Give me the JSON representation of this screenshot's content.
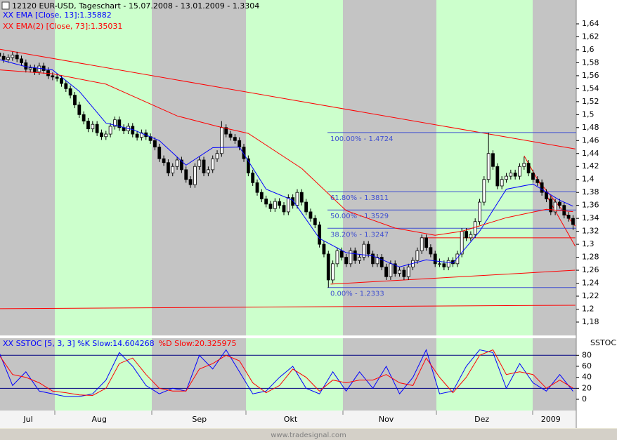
{
  "header": {
    "title": "12120  EUR-USD, Tageschart - 15.07.2008 - 13.01.2009 - 1.3304",
    "footer": "www.tradesignal.com"
  },
  "chart_data": [
    {
      "type": "candlestick",
      "xlim": [
        0.18,
        129.72
      ],
      "ylim": [
        1.1594,
        1.6768
      ],
      "yticks": [
        {
          "value": 1.18,
          "label": "1,18"
        },
        {
          "value": 1.2,
          "label": "1,2"
        },
        {
          "value": 1.22,
          "label": "1,22"
        },
        {
          "value": 1.24,
          "label": "1,24"
        },
        {
          "value": 1.26,
          "label": "1,26"
        },
        {
          "value": 1.28,
          "label": "1,28"
        },
        {
          "value": 1.3,
          "label": "1,3"
        },
        {
          "value": 1.32,
          "label": "1,32"
        },
        {
          "value": 1.34,
          "label": "1,34"
        },
        {
          "value": 1.36,
          "label": "1,36"
        },
        {
          "value": 1.38,
          "label": "1,38"
        },
        {
          "value": 1.4,
          "label": "1,4"
        },
        {
          "value": 1.42,
          "label": "1,42"
        },
        {
          "value": 1.44,
          "label": "1,44"
        },
        {
          "value": 1.46,
          "label": "1,46"
        },
        {
          "value": 1.48,
          "label": "1,48"
        },
        {
          "value": 1.5,
          "label": "1,5"
        },
        {
          "value": 1.52,
          "label": "1,52"
        },
        {
          "value": 1.54,
          "label": "1,54"
        },
        {
          "value": 1.56,
          "label": "1,56"
        },
        {
          "value": 1.58,
          "label": "1,58"
        },
        {
          "value": 1.6,
          "label": "1,6"
        },
        {
          "value": 1.62,
          "label": "1,62"
        },
        {
          "value": 1.64,
          "label": "1,64"
        }
      ],
      "up_color": "#ffffff",
      "down_color": "#000000",
      "ohlc": [
        [
          1.595,
          1.605,
          1.585,
          1.59
        ],
        [
          1.59,
          1.595,
          1.58,
          1.585
        ],
        [
          1.585,
          1.593,
          1.58,
          1.588
        ],
        [
          1.588,
          1.597,
          1.583,
          1.592
        ],
        [
          1.592,
          1.597,
          1.581,
          1.586
        ],
        [
          1.586,
          1.591,
          1.575,
          1.58
        ],
        [
          1.58,
          1.585,
          1.565,
          1.57
        ],
        [
          1.57,
          1.577,
          1.565,
          1.572
        ],
        [
          1.572,
          1.577,
          1.561,
          1.566
        ],
        [
          1.566,
          1.58,
          1.561,
          1.575
        ],
        [
          1.575,
          1.58,
          1.563,
          1.568
        ],
        [
          1.568,
          1.573,
          1.555,
          1.56
        ],
        [
          1.56,
          1.565,
          1.553,
          1.558
        ],
        [
          1.558,
          1.563,
          1.551,
          1.556
        ],
        [
          1.556,
          1.561,
          1.543,
          1.548
        ],
        [
          1.548,
          1.553,
          1.535,
          1.54
        ],
        [
          1.54,
          1.545,
          1.525,
          1.53
        ],
        [
          1.53,
          1.535,
          1.51,
          1.515
        ],
        [
          1.515,
          1.52,
          1.495,
          1.5
        ],
        [
          1.5,
          1.505,
          1.485,
          1.49
        ],
        [
          1.49,
          1.495,
          1.473,
          1.478
        ],
        [
          1.478,
          1.49,
          1.473,
          1.485
        ],
        [
          1.485,
          1.49,
          1.467,
          1.472
        ],
        [
          1.472,
          1.477,
          1.461,
          1.466
        ],
        [
          1.466,
          1.475,
          1.461,
          1.47
        ],
        [
          1.47,
          1.487,
          1.465,
          1.482
        ],
        [
          1.482,
          1.497,
          1.477,
          1.492
        ],
        [
          1.492,
          1.497,
          1.475,
          1.48
        ],
        [
          1.48,
          1.485,
          1.47,
          1.475
        ],
        [
          1.475,
          1.487,
          1.47,
          1.482
        ],
        [
          1.482,
          1.487,
          1.465,
          1.47
        ],
        [
          1.47,
          1.475,
          1.46,
          1.465
        ],
        [
          1.465,
          1.477,
          1.46,
          1.472
        ],
        [
          1.472,
          1.477,
          1.461,
          1.466
        ],
        [
          1.466,
          1.471,
          1.455,
          1.46
        ],
        [
          1.46,
          1.465,
          1.445,
          1.45
        ],
        [
          1.45,
          1.455,
          1.427,
          1.432
        ],
        [
          1.432,
          1.437,
          1.421,
          1.426
        ],
        [
          1.426,
          1.431,
          1.405,
          1.41
        ],
        [
          1.41,
          1.425,
          1.405,
          1.42
        ],
        [
          1.42,
          1.435,
          1.415,
          1.43
        ],
        [
          1.43,
          1.435,
          1.41,
          1.415
        ],
        [
          1.415,
          1.42,
          1.395,
          1.4
        ],
        [
          1.4,
          1.405,
          1.387,
          1.392
        ],
        [
          1.392,
          1.425,
          1.387,
          1.42
        ],
        [
          1.42,
          1.435,
          1.415,
          1.43
        ],
        [
          1.43,
          1.435,
          1.405,
          1.41
        ],
        [
          1.41,
          1.42,
          1.405,
          1.415
        ],
        [
          1.415,
          1.437,
          1.41,
          1.432
        ],
        [
          1.432,
          1.445,
          1.427,
          1.44
        ],
        [
          1.44,
          1.49,
          1.435,
          1.48
        ],
        [
          1.48,
          1.485,
          1.465,
          1.47
        ],
        [
          1.47,
          1.475,
          1.46,
          1.465
        ],
        [
          1.465,
          1.47,
          1.455,
          1.46
        ],
        [
          1.46,
          1.465,
          1.445,
          1.45
        ],
        [
          1.45,
          1.455,
          1.427,
          1.432
        ],
        [
          1.432,
          1.437,
          1.405,
          1.41
        ],
        [
          1.41,
          1.415,
          1.39,
          1.395
        ],
        [
          1.395,
          1.4,
          1.375,
          1.38
        ],
        [
          1.38,
          1.385,
          1.365,
          1.37
        ],
        [
          1.37,
          1.375,
          1.357,
          1.362
        ],
        [
          1.362,
          1.367,
          1.35,
          1.355
        ],
        [
          1.355,
          1.371,
          1.35,
          1.366
        ],
        [
          1.366,
          1.371,
          1.355,
          1.36
        ],
        [
          1.36,
          1.365,
          1.345,
          1.35
        ],
        [
          1.35,
          1.377,
          1.345,
          1.372
        ],
        [
          1.372,
          1.377,
          1.355,
          1.36
        ],
        [
          1.36,
          1.385,
          1.355,
          1.38
        ],
        [
          1.38,
          1.385,
          1.36,
          1.365
        ],
        [
          1.365,
          1.37,
          1.345,
          1.35
        ],
        [
          1.35,
          1.355,
          1.335,
          1.34
        ],
        [
          1.34,
          1.345,
          1.325,
          1.33
        ],
        [
          1.33,
          1.335,
          1.295,
          1.3
        ],
        [
          1.3,
          1.305,
          1.28,
          1.285
        ],
        [
          1.285,
          1.29,
          1.2333,
          1.245
        ],
        [
          1.245,
          1.275,
          1.24,
          1.27
        ],
        [
          1.27,
          1.295,
          1.265,
          1.29
        ],
        [
          1.29,
          1.295,
          1.275,
          1.28
        ],
        [
          1.28,
          1.285,
          1.265,
          1.27
        ],
        [
          1.27,
          1.295,
          1.265,
          1.29
        ],
        [
          1.29,
          1.295,
          1.27,
          1.275
        ],
        [
          1.275,
          1.285,
          1.27,
          1.28
        ],
        [
          1.28,
          1.305,
          1.275,
          1.3
        ],
        [
          1.3,
          1.305,
          1.28,
          1.285
        ],
        [
          1.285,
          1.29,
          1.265,
          1.27
        ],
        [
          1.27,
          1.285,
          1.265,
          1.28
        ],
        [
          1.28,
          1.285,
          1.26,
          1.265
        ],
        [
          1.265,
          1.27,
          1.245,
          1.25
        ],
        [
          1.25,
          1.275,
          1.245,
          1.27
        ],
        [
          1.27,
          1.275,
          1.25,
          1.255
        ],
        [
          1.255,
          1.265,
          1.25,
          1.26
        ],
        [
          1.26,
          1.265,
          1.245,
          1.25
        ],
        [
          1.25,
          1.27,
          1.245,
          1.265
        ],
        [
          1.265,
          1.28,
          1.26,
          1.275
        ],
        [
          1.275,
          1.295,
          1.27,
          1.29
        ],
        [
          1.29,
          1.315,
          1.285,
          1.31
        ],
        [
          1.31,
          1.315,
          1.29,
          1.295
        ],
        [
          1.295,
          1.3,
          1.28,
          1.285
        ],
        [
          1.285,
          1.29,
          1.265,
          1.27
        ],
        [
          1.27,
          1.278,
          1.265,
          1.27
        ],
        [
          1.27,
          1.275,
          1.26,
          1.265
        ],
        [
          1.265,
          1.28,
          1.26,
          1.275
        ],
        [
          1.275,
          1.28,
          1.265,
          1.27
        ],
        [
          1.27,
          1.29,
          1.265,
          1.285
        ],
        [
          1.285,
          1.325,
          1.28,
          1.32
        ],
        [
          1.32,
          1.325,
          1.305,
          1.31
        ],
        [
          1.31,
          1.32,
          1.305,
          1.315
        ],
        [
          1.315,
          1.34,
          1.31,
          1.335
        ],
        [
          1.335,
          1.37,
          1.33,
          1.365
        ],
        [
          1.365,
          1.405,
          1.36,
          1.4
        ],
        [
          1.4,
          1.472,
          1.395,
          1.44
        ],
        [
          1.44,
          1.445,
          1.415,
          1.42
        ],
        [
          1.42,
          1.425,
          1.385,
          1.39
        ],
        [
          1.39,
          1.405,
          1.385,
          1.4
        ],
        [
          1.4,
          1.41,
          1.395,
          1.405
        ],
        [
          1.405,
          1.415,
          1.4,
          1.41
        ],
        [
          1.41,
          1.415,
          1.4,
          1.405
        ],
        [
          1.405,
          1.425,
          1.4,
          1.42
        ],
        [
          1.42,
          1.435,
          1.415,
          1.425
        ],
        [
          1.425,
          1.43,
          1.405,
          1.41
        ],
        [
          1.41,
          1.415,
          1.395,
          1.4
        ],
        [
          1.4,
          1.405,
          1.39,
          1.395
        ],
        [
          1.395,
          1.4,
          1.375,
          1.38
        ],
        [
          1.38,
          1.385,
          1.365,
          1.37
        ],
        [
          1.37,
          1.375,
          1.345,
          1.35
        ],
        [
          1.35,
          1.37,
          1.345,
          1.365
        ],
        [
          1.365,
          1.37,
          1.355,
          1.36
        ],
        [
          1.36,
          1.365,
          1.34,
          1.345
        ],
        [
          1.345,
          1.35,
          1.335,
          1.34
        ],
        [
          1.34,
          1.345,
          1.322,
          1.3304
        ]
      ],
      "series": [
        {
          "name": "XX EMA [Close, 13]:1.35882",
          "color": "#0000ff",
          "x": [
            0,
            6,
            12,
            18,
            24,
            30,
            36,
            42,
            48,
            54,
            60,
            66,
            72,
            78,
            84,
            90,
            96,
            102,
            108,
            114,
            120,
            126,
            129
          ],
          "values": [
            1.585,
            1.574,
            1.569,
            1.536,
            1.487,
            1.477,
            1.46,
            1.422,
            1.449,
            1.45,
            1.385,
            1.368,
            1.309,
            1.287,
            1.282,
            1.265,
            1.276,
            1.271,
            1.32,
            1.385,
            1.393,
            1.368,
            1.35882
          ]
        },
        {
          "name": "XX EMA(2) [Close, 73]:1.35031",
          "color": "#ff0000",
          "x": [
            0,
            12,
            24,
            40,
            49,
            56,
            68,
            78,
            89,
            98,
            104,
            114,
            123,
            129
          ],
          "values": [
            1.569,
            1.563,
            1.547,
            1.498,
            1.482,
            1.471,
            1.417,
            1.352,
            1.325,
            1.314,
            1.32,
            1.341,
            1.354,
            1.35031
          ]
        }
      ],
      "trendline_color": "#ff0000",
      "trendlines": [
        {
          "x": [
            0,
            129.5
          ],
          "y": [
            1.601,
            1.447
          ]
        },
        {
          "x": [
            0,
            129.5
          ],
          "y": [
            1.2007,
            1.206
          ]
        },
        {
          "x": [
            74.5,
            129.5
          ],
          "y": [
            1.2385,
            1.26
          ]
        },
        {
          "x": [
            118,
            129.5
          ],
          "y": [
            1.4365,
            1.297
          ]
        },
        {
          "x": [
            121,
            129.5
          ],
          "y": [
            1.4,
            1.328
          ]
        },
        {
          "x": [
            94.8,
            129.5
          ],
          "y": [
            1.31,
            1.31
          ]
        }
      ],
      "fibonacci": {
        "color": "#4050d0",
        "x": [
          73.8,
          129.7
        ],
        "levels": [
          {
            "value": 1.4724,
            "label": "100.00% - 1.4724"
          },
          {
            "value": 1.3811,
            "label": "61.80% - 1.3811"
          },
          {
            "value": 1.3529,
            "label": "50.00% - 1.3529"
          },
          {
            "value": 1.3247,
            "label": "38.20% - 1.3247"
          },
          {
            "value": 1.2333,
            "label": "0.00% - 1.2333"
          }
        ]
      }
    },
    {
      "type": "line",
      "label": "SSTOC",
      "xlim": [
        0.18,
        129.72
      ],
      "ylim": [
        -20.4,
        111
      ],
      "yticks": [
        0,
        20,
        40,
        60,
        80
      ],
      "levels": [
        20,
        80
      ],
      "level_color": "#000080",
      "xticks": [
        {
          "value": 6.5,
          "label": "Jul"
        },
        {
          "value": 22.5,
          "label": "Aug"
        },
        {
          "value": 45,
          "label": "Sep"
        },
        {
          "value": 65.5,
          "label": "Okt"
        },
        {
          "value": 87,
          "label": "Nov"
        },
        {
          "value": 108.5,
          "label": "Dez"
        },
        {
          "value": 124,
          "label": "2009"
        }
      ],
      "x": [
        0,
        3,
        6,
        9,
        12,
        15,
        18,
        21,
        24,
        27,
        30,
        33,
        36,
        39,
        42,
        45,
        48,
        51,
        54,
        57,
        60,
        63,
        66,
        69,
        72,
        75,
        78,
        81,
        84,
        87,
        90,
        93,
        96,
        99,
        102,
        105,
        108,
        111,
        114,
        117,
        120,
        123,
        126,
        129
      ],
      "series": [
        {
          "name": "XX SSTOC [5, 3, 3] %K Slow:14.604268",
          "color": "#0000ff",
          "values": [
            85,
            25,
            50,
            15,
            10,
            5,
            5,
            10,
            35,
            85,
            60,
            25,
            10,
            20,
            15,
            80,
            55,
            90,
            50,
            10,
            15,
            40,
            60,
            20,
            10,
            50,
            15,
            50,
            20,
            60,
            10,
            40,
            90,
            10,
            15,
            60,
            90,
            85,
            20,
            65,
            30,
            15,
            45,
            14.604268
          ]
        },
        {
          "name": "%D Slow:20.325975",
          "color": "#ff0000",
          "values": [
            80,
            45,
            40,
            30,
            15,
            12,
            8,
            7,
            20,
            65,
            75,
            45,
            20,
            15,
            15,
            55,
            65,
            80,
            70,
            30,
            12,
            25,
            55,
            40,
            15,
            35,
            30,
            35,
            35,
            45,
            30,
            25,
            75,
            40,
            12,
            40,
            80,
            90,
            45,
            50,
            45,
            20,
            35,
            20.325975
          ]
        }
      ]
    }
  ]
}
